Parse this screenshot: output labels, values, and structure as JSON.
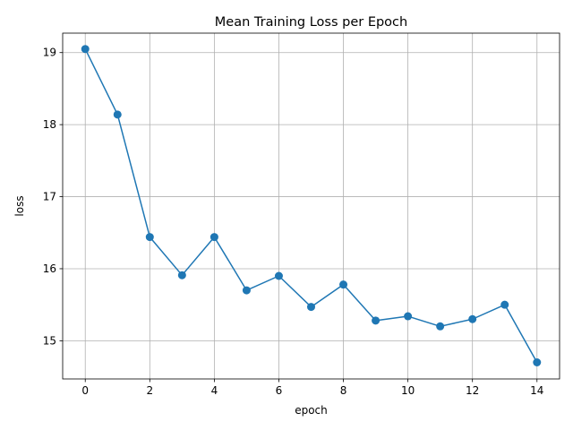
{
  "chart_data": {
    "type": "line",
    "title": "Mean Training Loss per Epoch",
    "xlabel": "epoch",
    "ylabel": "loss",
    "x": [
      0,
      1,
      2,
      3,
      4,
      5,
      6,
      7,
      8,
      9,
      10,
      11,
      12,
      13,
      14
    ],
    "series": [
      {
        "values": [
          19.05,
          18.14,
          16.44,
          15.91,
          16.44,
          15.7,
          15.9,
          15.47,
          15.78,
          15.28,
          15.34,
          15.2,
          15.3,
          15.5,
          14.7
        ],
        "color": "#1f77b4",
        "marker": "circle"
      }
    ],
    "xlim": [
      -0.7,
      14.7
    ],
    "ylim": [
      14.47,
      19.27
    ],
    "xticks": [
      0,
      2,
      4,
      6,
      8,
      10,
      12,
      14
    ],
    "yticks": [
      15,
      16,
      17,
      18,
      19
    ],
    "grid": true
  }
}
